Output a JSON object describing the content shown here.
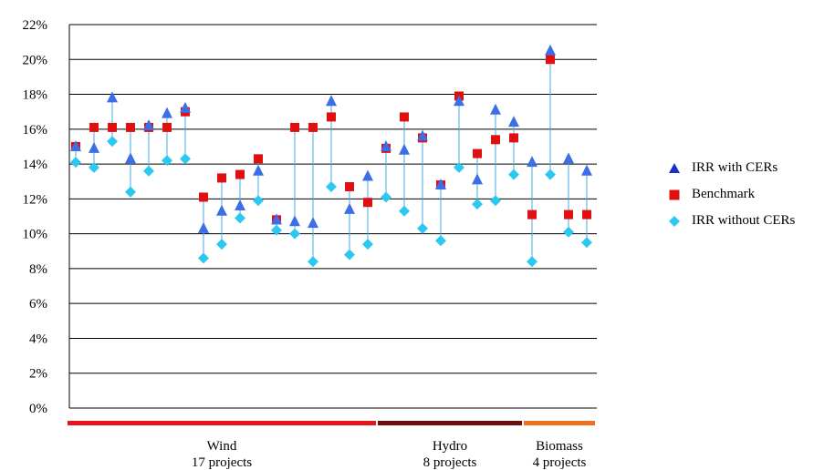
{
  "chart_data": {
    "type": "scatter",
    "ylim": [
      0,
      22
    ],
    "yticks": [
      "0%",
      "2%",
      "4%",
      "6%",
      "8%",
      "10%",
      "12%",
      "14%",
      "16%",
      "18%",
      "20%",
      "22%"
    ],
    "y_unit": "%",
    "grid": true,
    "legend_position": "right",
    "series": [
      {
        "name": "IRR with CERs",
        "marker": "triangle",
        "color": "#3c6ee6",
        "values": [
          15.0,
          14.9,
          17.8,
          14.3,
          16.2,
          16.9,
          17.2,
          10.3,
          11.3,
          11.6,
          13.6,
          10.8,
          10.7,
          10.6,
          17.6,
          11.4,
          13.3,
          15.0,
          14.8,
          15.6,
          12.8,
          17.6,
          13.1,
          17.1,
          16.4,
          14.1,
          20.5,
          14.3,
          13.6
        ]
      },
      {
        "name": "Benchmark",
        "marker": "square",
        "color": "#e01010",
        "values": [
          15.0,
          16.1,
          16.1,
          16.1,
          16.1,
          16.1,
          17.0,
          12.1,
          13.2,
          13.4,
          14.3,
          10.8,
          16.1,
          16.1,
          16.7,
          12.7,
          11.8,
          14.9,
          16.7,
          15.5,
          12.8,
          17.9,
          14.6,
          15.4,
          15.5,
          11.1,
          20.0,
          11.1,
          11.1
        ]
      },
      {
        "name": "IRR without CERs",
        "marker": "diamond",
        "color": "#2cc8f0",
        "values": [
          14.1,
          13.8,
          15.3,
          12.4,
          13.6,
          14.2,
          14.3,
          8.6,
          9.4,
          10.9,
          11.9,
          10.2,
          10.0,
          8.4,
          12.7,
          8.8,
          9.4,
          12.1,
          11.3,
          10.3,
          9.6,
          13.8,
          11.7,
          11.9,
          13.4,
          8.4,
          13.4,
          10.1,
          9.5
        ]
      }
    ],
    "groups": [
      {
        "name": "Wind",
        "count_label": "17 projects",
        "count": 17,
        "color": "#e8141c"
      },
      {
        "name": "Hydro",
        "count_label": "8 projects",
        "count": 8,
        "color": "#6b0d0d"
      },
      {
        "name": "Biomass",
        "count_label": "4 projects",
        "count": 4,
        "color": "#f07020"
      }
    ]
  }
}
